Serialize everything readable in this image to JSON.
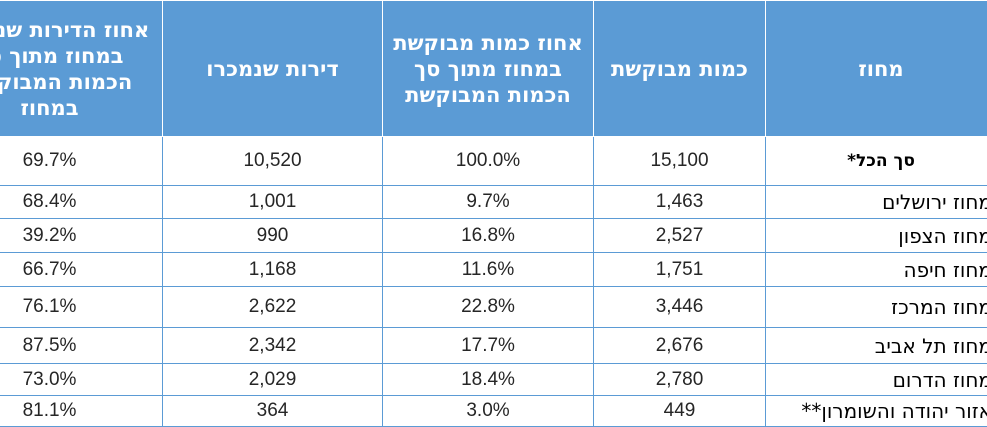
{
  "headers": {
    "district": "מחוז",
    "requested_qty": "כמות מבוקשת",
    "requested_pct": "אחוז כמות מבוקשת במחוז מתוך סך הכמות המבוקשת",
    "sold": "דירות שנמכרו",
    "sold_pct": "אחוז הדירות שנמכרו במחוז מתוך סך הכמות המבוקשת במחוז"
  },
  "rows": [
    {
      "district": "סך הכל*",
      "requested_qty": "15,100",
      "requested_pct": "100.0%",
      "sold": "10,520",
      "sold_pct": "69.7%"
    },
    {
      "district": "מחוז ירושלים",
      "requested_qty": "1,463",
      "requested_pct": "9.7%",
      "sold": "1,001",
      "sold_pct": "68.4%"
    },
    {
      "district": "מחוז הצפון",
      "requested_qty": "2,527",
      "requested_pct": "16.8%",
      "sold": "990",
      "sold_pct": "39.2%"
    },
    {
      "district": "מחוז חיפה",
      "requested_qty": "1,751",
      "requested_pct": "11.6%",
      "sold": "1,168",
      "sold_pct": "66.7%"
    },
    {
      "district": "מחוז המרכז",
      "requested_qty": "3,446",
      "requested_pct": "22.8%",
      "sold": "2,622",
      "sold_pct": "76.1%"
    },
    {
      "district": "מחוז תל אביב",
      "requested_qty": "2,676",
      "requested_pct": "17.7%",
      "sold": "2,342",
      "sold_pct": "87.5%"
    },
    {
      "district": "מחוז הדרום",
      "requested_qty": "2,780",
      "requested_pct": "18.4%",
      "sold": "2,029",
      "sold_pct": "73.0%"
    },
    {
      "district": "אזור יהודה והשומרון**",
      "requested_qty": "449",
      "requested_pct": "3.0%",
      "sold": "364",
      "sold_pct": "81.1%"
    }
  ],
  "colors": {
    "header_bg": "#5b9bd5",
    "header_text": "#ffffff",
    "grid_line": "#5b9bd5"
  }
}
